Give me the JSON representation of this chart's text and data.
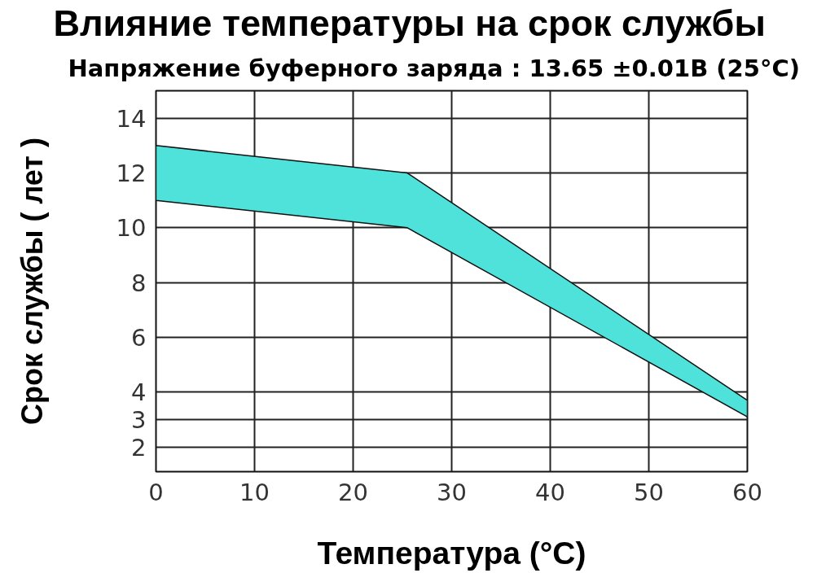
{
  "chart_data": {
    "type": "line",
    "title": "Влияние температуры на срок службы",
    "subtitle": "Напряжение буферного заряда : 13.65 ±0.01В (25°C)",
    "xlabel": "Температура (°C)",
    "ylabel": "Срок службы ( лет )",
    "x": [
      0,
      25.5,
      60
    ],
    "series": [
      {
        "color": "#4ee2da",
        "values": [
          null,
          null,
          null
        ],
        "lower": [
          11,
          10,
          3.1
        ],
        "upper": [
          13,
          12,
          3.7
        ]
      }
    ],
    "xlim": [
      0,
      60
    ],
    "ylim": [
      1.1,
      15
    ],
    "xticks": [
      0,
      10,
      20,
      30,
      40,
      50,
      60
    ],
    "yticks": [
      2,
      3,
      4,
      6,
      8,
      10,
      12,
      14
    ],
    "grid": true
  }
}
